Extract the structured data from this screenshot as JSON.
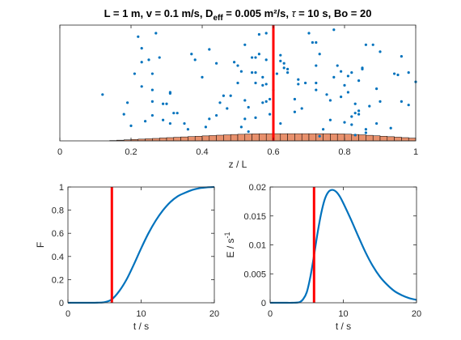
{
  "chart_data": [
    {
      "id": "top",
      "type": "scatter",
      "title": "L = 1 m, v = 0.1 m/s, D",
      "title_sub": "eff",
      "title_rest": " = 0.005 m²/s, ",
      "title_tau": "τ",
      "title_end": " = 10 s, Bo = 20",
      "xlabel": "z / L",
      "ylabel": "",
      "xlim": [
        0,
        1
      ],
      "ylim": [
        0,
        1
      ],
      "xticks": [
        "0",
        "0.2",
        "0.4",
        "0.6",
        "0.8",
        "1"
      ],
      "yticks": [],
      "marker_line_x": 0.6,
      "points": [
        [
          0.12,
          0.4
        ],
        [
          0.18,
          0.23
        ],
        [
          0.19,
          0.33
        ],
        [
          0.2,
          0.13
        ],
        [
          0.21,
          0.58
        ],
        [
          0.22,
          0.9
        ],
        [
          0.23,
          0.8
        ],
        [
          0.23,
          0.68
        ],
        [
          0.23,
          0.47
        ],
        [
          0.24,
          0.17
        ],
        [
          0.25,
          0.7
        ],
        [
          0.26,
          0.34
        ],
        [
          0.26,
          0.58
        ],
        [
          0.26,
          0.44
        ],
        [
          0.26,
          0.22
        ],
        [
          0.27,
          0.93
        ],
        [
          0.28,
          0.72
        ],
        [
          0.29,
          0.32
        ],
        [
          0.3,
          0.32
        ],
        [
          0.31,
          0.15
        ],
        [
          0.31,
          0.42
        ],
        [
          0.31,
          0.41
        ],
        [
          0.32,
          0.24
        ],
        [
          0.33,
          0.24
        ],
        [
          0.36,
          0.1
        ],
        [
          0.37,
          0.75
        ],
        [
          0.38,
          0.7
        ],
        [
          0.41,
          0.12
        ],
        [
          0.42,
          0.19
        ],
        [
          0.42,
          0.79
        ],
        [
          0.44,
          0.67
        ],
        [
          0.45,
          0.33
        ],
        [
          0.46,
          0.39
        ],
        [
          0.48,
          0.39
        ],
        [
          0.49,
          0.68
        ],
        [
          0.5,
          0.5
        ],
        [
          0.5,
          0.65
        ],
        [
          0.51,
          0.6
        ],
        [
          0.51,
          0.12
        ],
        [
          0.52,
          0.83
        ],
        [
          0.52,
          0.35
        ],
        [
          0.52,
          0.19
        ],
        [
          0.53,
          0.29
        ],
        [
          0.53,
          0.08
        ],
        [
          0.54,
          0.72
        ],
        [
          0.54,
          0.59
        ],
        [
          0.55,
          0.72
        ],
        [
          0.55,
          0.5
        ],
        [
          0.55,
          0.59
        ],
        [
          0.56,
          0.75
        ],
        [
          0.56,
          0.92
        ],
        [
          0.57,
          0.33
        ],
        [
          0.57,
          0.55
        ],
        [
          0.57,
          0.48
        ],
        [
          0.58,
          0.93
        ],
        [
          0.58,
          0.7
        ],
        [
          0.58,
          0.49
        ],
        [
          0.58,
          0.34
        ],
        [
          0.59,
          0.36
        ],
        [
          0.59,
          0.23
        ],
        [
          0.61,
          0.58
        ],
        [
          0.62,
          0.74
        ],
        [
          0.62,
          0.69
        ],
        [
          0.63,
          0.67
        ],
        [
          0.63,
          0.63
        ],
        [
          0.64,
          0.59
        ],
        [
          0.64,
          0.62
        ],
        [
          0.66,
          0.36
        ],
        [
          0.66,
          0.25
        ],
        [
          0.67,
          0.53
        ],
        [
          0.67,
          0.49
        ],
        [
          0.69,
          0.5
        ],
        [
          0.7,
          0.93
        ],
        [
          0.71,
          0.85
        ],
        [
          0.72,
          0.85
        ],
        [
          0.72,
          0.5
        ],
        [
          0.72,
          0.44
        ],
        [
          0.72,
          0.65
        ],
        [
          0.73,
          0.75
        ],
        [
          0.73,
          0.04
        ],
        [
          0.75,
          0.4
        ],
        [
          0.76,
          0.35
        ],
        [
          0.76,
          0.18
        ],
        [
          0.77,
          0.96
        ],
        [
          0.77,
          0.55
        ],
        [
          0.78,
          0.65
        ],
        [
          0.79,
          0.6
        ],
        [
          0.8,
          0.16
        ],
        [
          0.8,
          0.48
        ],
        [
          0.81,
          0.56
        ],
        [
          0.81,
          0.42
        ],
        [
          0.82,
          0.59
        ],
        [
          0.82,
          0.14
        ],
        [
          0.82,
          0.21
        ],
        [
          0.83,
          0.32
        ],
        [
          0.83,
          0.05
        ],
        [
          0.83,
          0.24
        ],
        [
          0.84,
          0.52
        ],
        [
          0.84,
          0.26
        ],
        [
          0.84,
          0.23
        ],
        [
          0.85,
          0.62
        ],
        [
          0.85,
          0.63
        ],
        [
          0.86,
          0.83
        ],
        [
          0.86,
          0.07
        ],
        [
          0.87,
          0.3
        ],
        [
          0.88,
          0.83
        ],
        [
          0.89,
          0.15
        ],
        [
          0.89,
          0.45
        ],
        [
          0.9,
          0.34
        ],
        [
          0.9,
          0.77
        ],
        [
          0.93,
          0.11
        ],
        [
          0.94,
          0.58
        ],
        [
          0.95,
          0.57
        ],
        [
          0.96,
          0.73
        ],
        [
          0.96,
          0.34
        ],
        [
          0.98,
          0.59
        ],
        [
          0.98,
          0.31
        ],
        [
          1.0,
          0.51
        ],
        [
          0.55,
          0.2
        ],
        [
          0.62,
          0.15
        ],
        [
          0.47,
          0.28
        ],
        [
          0.4,
          0.55
        ],
        [
          0.35,
          0.15
        ],
        [
          0.29,
          0.18
        ],
        [
          0.74,
          0.1
        ],
        [
          0.68,
          0.28
        ],
        [
          0.79,
          0.38
        ],
        [
          0.86,
          0.1
        ],
        [
          0.6,
          0.44
        ],
        [
          0.44,
          0.22
        ]
      ],
      "histogram": {
        "edges": [
          0.14,
          0.16,
          0.18,
          0.2,
          0.22,
          0.24,
          0.26,
          0.28,
          0.3,
          0.32,
          0.34,
          0.36,
          0.38,
          0.4,
          0.42,
          0.44,
          0.46,
          0.48,
          0.5,
          0.52,
          0.54,
          0.56,
          0.58,
          0.6,
          0.62,
          0.64,
          0.66,
          0.68,
          0.7,
          0.72,
          0.74,
          0.76,
          0.78,
          0.8,
          0.82,
          0.84,
          0.86,
          0.88,
          0.9,
          0.92,
          0.94,
          0.96,
          0.98,
          1.0
        ],
        "values": [
          0.003,
          0.006,
          0.009,
          0.012,
          0.015,
          0.018,
          0.021,
          0.025,
          0.028,
          0.031,
          0.034,
          0.037,
          0.04,
          0.043,
          0.046,
          0.049,
          0.052,
          0.055,
          0.057,
          0.059,
          0.061,
          0.062,
          0.062,
          0.062,
          0.062,
          0.062,
          0.062,
          0.062,
          0.062,
          0.062,
          0.062,
          0.061,
          0.06,
          0.058,
          0.055,
          0.052,
          0.048,
          0.044,
          0.04,
          0.036,
          0.032,
          0.028,
          0.024
        ],
        "display_max": 1.0
      }
    },
    {
      "id": "F",
      "type": "line",
      "title": "",
      "xlabel": "t / s",
      "ylabel": "F",
      "xlim": [
        0,
        20
      ],
      "ylim": [
        0,
        1
      ],
      "xticks": [
        "0",
        "10",
        "20"
      ],
      "yticks": [
        "0",
        "0.2",
        "0.4",
        "0.6",
        "0.8",
        "1"
      ],
      "marker_line_x": 6,
      "x": [
        0,
        1,
        2,
        3,
        4,
        5,
        6,
        7,
        8,
        9,
        10,
        11,
        12,
        13,
        14,
        15,
        16,
        17,
        18,
        19,
        20
      ],
      "y": [
        0,
        0,
        0,
        0,
        0.001,
        0.005,
        0.03,
        0.1,
        0.2,
        0.33,
        0.47,
        0.6,
        0.71,
        0.8,
        0.87,
        0.92,
        0.95,
        0.975,
        0.99,
        0.997,
        1.0
      ]
    },
    {
      "id": "E",
      "type": "line",
      "title": "",
      "xlabel": "t / s",
      "ylabel": "E / s",
      "ylabel_sup": "-1",
      "xlim": [
        0,
        20
      ],
      "ylim": [
        0,
        0.02
      ],
      "xticks": [
        "0",
        "10",
        "20"
      ],
      "yticks": [
        "0",
        "0.005",
        "0.01",
        "0.015",
        "0.02"
      ],
      "marker_line_x": 6,
      "x": [
        0,
        1,
        2,
        3,
        4,
        4.5,
        5,
        5.5,
        6,
        6.5,
        7,
        7.5,
        8,
        8.5,
        9,
        9.5,
        10,
        11,
        12,
        13,
        14,
        15,
        16,
        17,
        18,
        19,
        20
      ],
      "y": [
        0,
        0,
        0,
        0,
        0.0001,
        0.0006,
        0.0018,
        0.0045,
        0.0082,
        0.0122,
        0.0156,
        0.018,
        0.0192,
        0.0195,
        0.0192,
        0.0184,
        0.0172,
        0.0145,
        0.0116,
        0.0088,
        0.0064,
        0.0045,
        0.0031,
        0.002,
        0.0013,
        0.0008,
        0.0005
      ]
    }
  ],
  "colors": {
    "line": "#0072bd",
    "points": "#0072bd",
    "marker": "#ff0000",
    "hist_fill": "#e8906c",
    "hist_edge": "#000000",
    "axes": "#262626"
  }
}
